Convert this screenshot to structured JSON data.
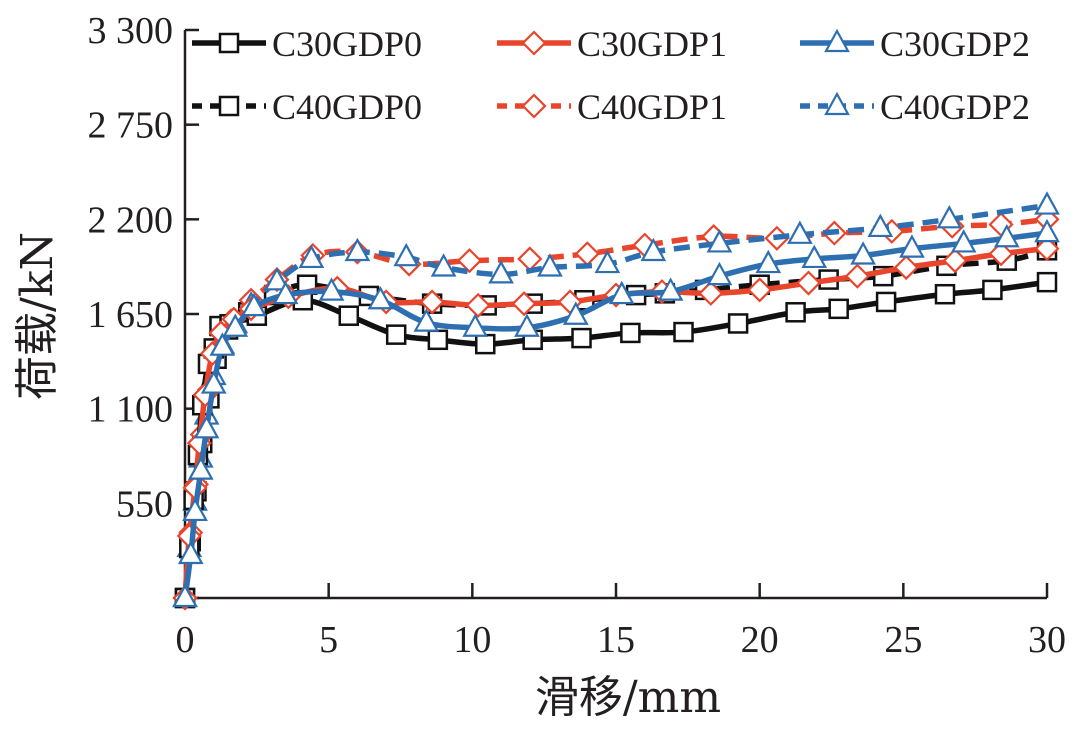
{
  "chart_data": {
    "type": "line",
    "title": "",
    "xlabel": "滑移/mm",
    "ylabel": "荷载/kN",
    "xlim": [
      0,
      30
    ],
    "ylim": [
      0,
      3300
    ],
    "xticks": [
      0,
      5,
      10,
      15,
      20,
      25,
      30
    ],
    "xtick_labels": [
      "0",
      "5",
      "10",
      "15",
      "20",
      "25",
      "30"
    ],
    "yticks": [
      0,
      550,
      1100,
      1650,
      2200,
      2750,
      3300
    ],
    "ytick_labels": [
      "",
      "550",
      "1 100",
      "1 650",
      "2 200",
      "2 750",
      "3 300"
    ],
    "grid": false,
    "legend": {
      "position": "top",
      "columns": 3
    },
    "series": [
      {
        "name": "C30GDP0",
        "color": "#111111",
        "dash": "solid",
        "marker": "square",
        "x": [
          0,
          0.15,
          0.3,
          0.45,
          0.6,
          0.8,
          1.0,
          1.2,
          1.55,
          2.5,
          4.1,
          5.7,
          7.35,
          8.8,
          10.45,
          12.1,
          13.8,
          15.5,
          17.35,
          19.25,
          21.25,
          22.75,
          24.4,
          26.45,
          28.1,
          30.0
        ],
        "y": [
          0,
          290,
          570,
          830,
          1120,
          1360,
          1450,
          1580,
          1590,
          1640,
          1730,
          1640,
          1530,
          1500,
          1475,
          1500,
          1510,
          1540,
          1545,
          1595,
          1660,
          1680,
          1720,
          1765,
          1790,
          1835
        ]
      },
      {
        "name": "C30GDP1",
        "color": "#e8452c",
        "dash": "solid",
        "marker": "diamond",
        "x": [
          0,
          0.15,
          0.35,
          0.5,
          0.7,
          0.95,
          1.25,
          1.7,
          2.3,
          3.6,
          5.3,
          7.0,
          8.6,
          10.2,
          11.8,
          13.4,
          15.0,
          16.6,
          18.3,
          20.0,
          21.7,
          23.4,
          25.1,
          26.8,
          28.4,
          30.0
        ],
        "y": [
          0,
          360,
          640,
          900,
          1180,
          1420,
          1540,
          1620,
          1680,
          1750,
          1800,
          1720,
          1720,
          1700,
          1710,
          1720,
          1760,
          1780,
          1770,
          1790,
          1830,
          1870,
          1920,
          1960,
          2000,
          2030
        ]
      },
      {
        "name": "C30GDP2",
        "color": "#2e6fb1",
        "dash": "solid",
        "marker": "triangle",
        "x": [
          0,
          0.2,
          0.35,
          0.55,
          0.75,
          1.0,
          1.3,
          1.75,
          2.4,
          3.5,
          5.1,
          6.8,
          8.4,
          10.1,
          11.9,
          13.6,
          15.2,
          16.9,
          18.6,
          20.3,
          21.9,
          23.6,
          25.3,
          27.1,
          28.6,
          30.0
        ],
        "y": [
          0,
          250,
          500,
          740,
          980,
          1240,
          1460,
          1570,
          1690,
          1760,
          1780,
          1730,
          1600,
          1570,
          1570,
          1640,
          1760,
          1780,
          1870,
          1940,
          1970,
          1990,
          2030,
          2060,
          2090,
          2120
        ]
      },
      {
        "name": "C40GDP0",
        "color": "#111111",
        "dash": "dashed",
        "marker": "square",
        "x": [
          0,
          0.2,
          0.4,
          0.6,
          0.85,
          1.1,
          1.5,
          2.2,
          3.1,
          4.25,
          6.4,
          8.6,
          10.5,
          12.1,
          13.9,
          15.7,
          16.7,
          18.1,
          20.0,
          22.4,
          24.3,
          26.5,
          28.6,
          30.0
        ],
        "y": [
          0,
          330,
          620,
          900,
          1160,
          1390,
          1560,
          1660,
          1760,
          1820,
          1755,
          1710,
          1700,
          1710,
          1730,
          1760,
          1770,
          1790,
          1820,
          1850,
          1870,
          1930,
          1960,
          2020
        ]
      },
      {
        "name": "C40GDP1",
        "color": "#e8452c",
        "dash": "dashed",
        "marker": "diamond",
        "x": [
          0,
          0.2,
          0.4,
          0.6,
          0.85,
          1.15,
          1.6,
          2.3,
          3.2,
          4.45,
          6.0,
          7.8,
          9.9,
          12.0,
          14.0,
          16.0,
          18.4,
          20.6,
          22.6,
          24.6,
          26.7,
          28.4,
          30.0
        ],
        "y": [
          0,
          380,
          660,
          950,
          1210,
          1440,
          1610,
          1730,
          1850,
          1990,
          2010,
          1940,
          1960,
          1970,
          2000,
          2050,
          2100,
          2090,
          2120,
          2130,
          2160,
          2170,
          2200
        ]
      },
      {
        "name": "C40GDP2",
        "color": "#2e6fb1",
        "dash": "dashed",
        "marker": "triangle",
        "x": [
          0,
          0.15,
          0.35,
          0.55,
          0.75,
          1.0,
          1.3,
          1.75,
          2.3,
          3.2,
          4.4,
          6.0,
          7.7,
          9.0,
          11.0,
          12.7,
          14.7,
          16.3,
          18.6,
          21.4,
          24.2,
          26.6,
          30.0
        ],
        "y": [
          0,
          290,
          560,
          810,
          1060,
          1290,
          1470,
          1590,
          1700,
          1840,
          1970,
          2010,
          1980,
          1920,
          1880,
          1920,
          1940,
          2010,
          2060,
          2110,
          2150,
          2200,
          2280
        ]
      }
    ]
  }
}
